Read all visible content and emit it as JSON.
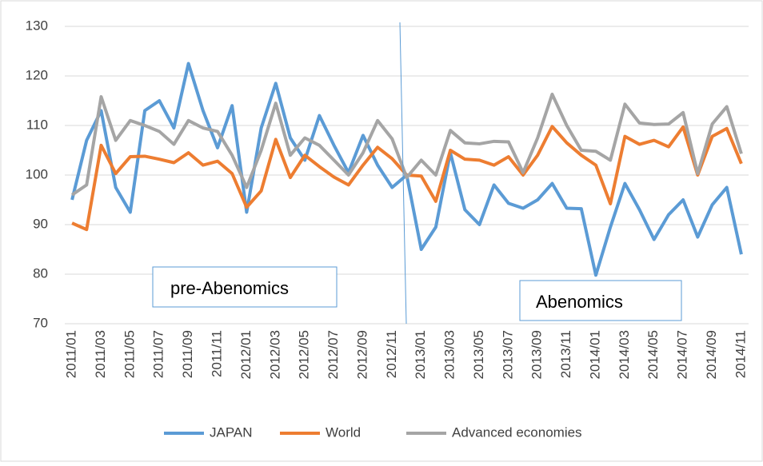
{
  "chart_data": {
    "type": "line",
    "categories": [
      "2011/01",
      null,
      "2011/03",
      null,
      "2011/05",
      null,
      "2011/07",
      null,
      "2011/09",
      null,
      "2011/11",
      null,
      "2012/01",
      null,
      "2012/03",
      null,
      "2012/05",
      null,
      "2012/07",
      null,
      "2012/09",
      null,
      "2012/11",
      null,
      "2013/01",
      null,
      "2013/03",
      null,
      "2013/05",
      null,
      "2013/07",
      null,
      "2013/09",
      null,
      "2013/11",
      null,
      "2014/01",
      null,
      "2014/03",
      null,
      "2014/05",
      null,
      "2014/07",
      null,
      "2014/09",
      null,
      "2014/11"
    ],
    "series": [
      {
        "name": "JAPAN",
        "color": "#5b9bd5",
        "values": [
          95,
          107,
          113,
          97.5,
          92.5,
          113,
          115,
          109.5,
          122.5,
          113,
          105.5,
          114,
          92.5,
          109.5,
          118.5,
          107.5,
          103,
          112,
          106,
          100.5,
          108,
          102,
          97.5,
          100,
          85,
          89.5,
          104.5,
          93,
          90,
          98,
          94.3,
          93.3,
          95,
          98.3,
          93.3,
          93.2,
          79.8,
          89.5,
          98.3,
          93,
          87,
          92,
          95,
          87.5,
          94,
          97.5,
          84
        ]
      },
      {
        "name": "World",
        "color": "#ed7d31",
        "values": [
          90.3,
          89,
          106,
          100.3,
          103.7,
          103.8,
          103.2,
          102.5,
          104.5,
          102,
          102.8,
          100.3,
          93.5,
          96.8,
          107.2,
          99.5,
          104,
          101.7,
          99.6,
          98,
          102,
          105.6,
          103.3,
          100,
          99.8,
          94.7,
          105,
          103.2,
          103,
          102,
          103.7,
          100,
          104,
          109.8,
          106.5,
          104,
          102,
          94.2,
          107.8,
          106.2,
          107,
          105.7,
          109.7,
          100,
          107.8,
          109.4,
          102.3
        ]
      },
      {
        "name": "Advanced economies",
        "color": "#a5a5a5",
        "values": [
          96,
          98,
          115.8,
          107,
          111,
          110,
          108.8,
          106.2,
          111,
          109.5,
          108.8,
          104,
          97.5,
          105,
          114.5,
          104,
          107.5,
          106,
          103,
          100,
          104.5,
          111,
          107.3,
          99.5,
          103,
          100,
          109,
          106.5,
          106.3,
          106.8,
          106.7,
          100.5,
          107.5,
          116.3,
          110,
          105,
          104.8,
          103,
          114.3,
          110.5,
          110.2,
          110.3,
          112.6,
          100.3,
          110.3,
          113.8,
          104.3
        ]
      }
    ],
    "ylim": [
      70,
      130
    ],
    "yticks": [
      70,
      80,
      90,
      100,
      110,
      120,
      130
    ],
    "grid": true,
    "annotations": [
      "pre-Abenomics",
      "Abenomics"
    ],
    "legend": "bottom"
  }
}
